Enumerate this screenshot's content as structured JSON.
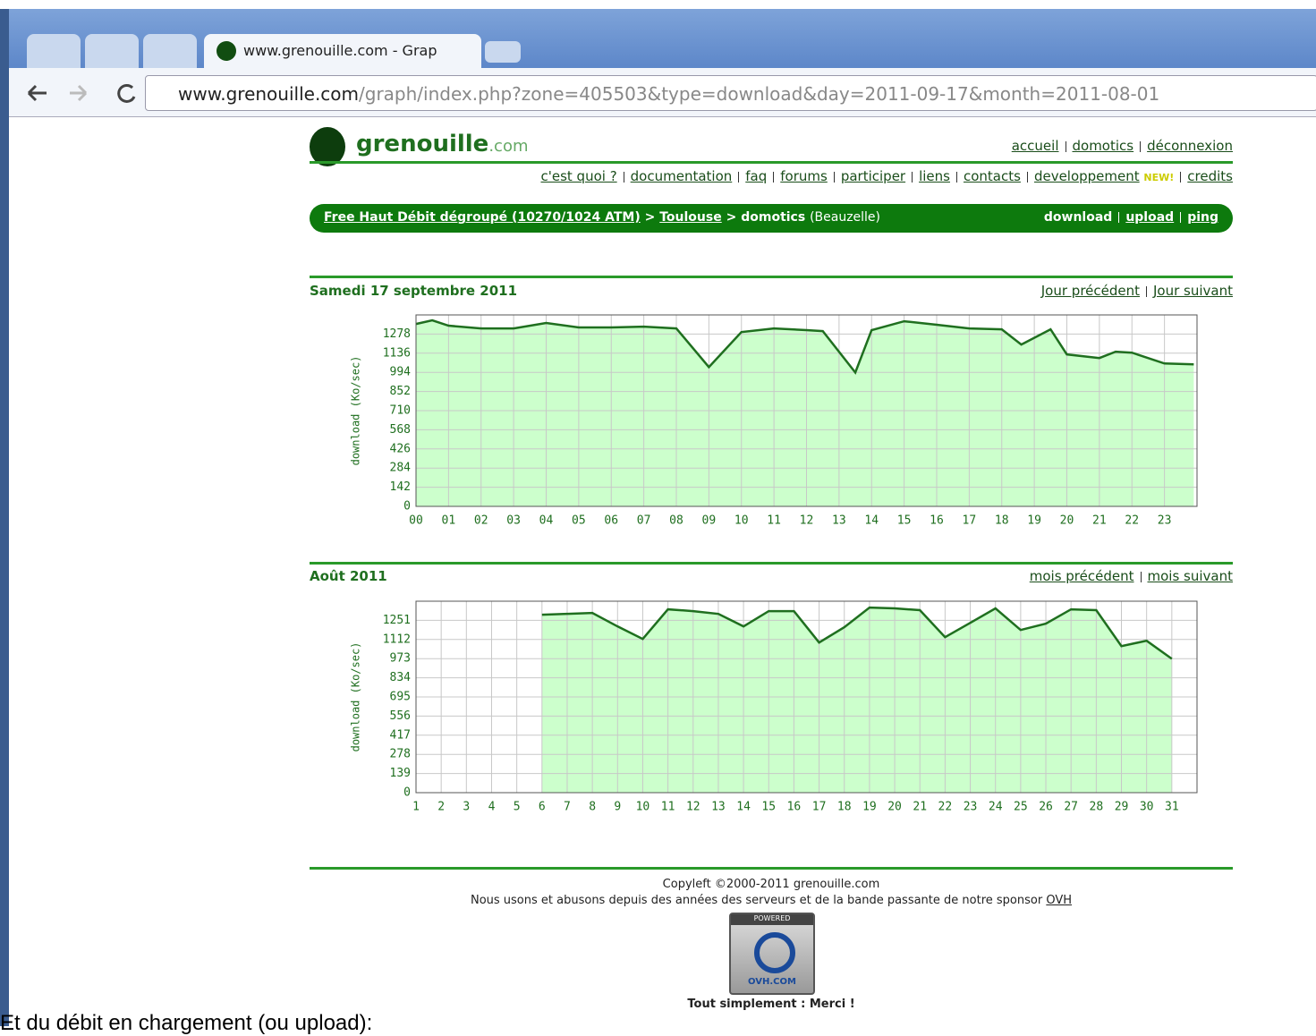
{
  "browser": {
    "tab_title": "www.grenouille.com - Grap",
    "url_host": "www.grenouille.com",
    "url_path": "/graph/index.php?zone=405503&type=download&day=2011-09-17&month=2011-08-01"
  },
  "header": {
    "logo": "grenouille",
    "logo_suffix": ".com",
    "top_links": [
      "accueil",
      "domotics",
      "déconnexion"
    ],
    "nav": [
      "c'est quoi ?",
      "documentation",
      "faq",
      "forums",
      "participer",
      "liens",
      "contacts",
      "developpement",
      "credits"
    ],
    "new_badge": "NEW!"
  },
  "breadcrumb": {
    "provider": "Free Haut Débit dégroupé (10270/1024 ATM)",
    "city": "Toulouse",
    "group": "domotics",
    "place": "(Beauzelle)",
    "sep": ">",
    "current": "download",
    "links": [
      "upload",
      "ping"
    ]
  },
  "day_section": {
    "title": "Samedi 17 septembre 2011",
    "links": [
      "Jour précédent",
      "Jour suivant"
    ]
  },
  "month_section": {
    "title": "Août 2011",
    "links": [
      "mois précédent",
      "mois suivant"
    ]
  },
  "chart_data": [
    {
      "type": "area",
      "y_label": "download (Ko/sec)",
      "x": [
        0,
        0.5,
        1,
        2,
        3,
        4,
        5,
        6,
        7,
        8,
        9,
        10,
        11,
        12,
        12.5,
        13.5,
        14,
        15,
        16,
        17,
        18,
        18.6,
        19.5,
        20,
        21,
        21.5,
        22,
        23,
        23.9
      ],
      "values": [
        1353,
        1380,
        1340,
        1320,
        1320,
        1360,
        1327,
        1327,
        1333,
        1320,
        1033,
        1293,
        1320,
        1307,
        1300,
        993,
        1307,
        1373,
        1347,
        1320,
        1313,
        1200,
        1313,
        1127,
        1100,
        1147,
        1140,
        1060,
        1053
      ],
      "color": "#1f6f1f",
      "fill": "#ccffcc",
      "xlim": [
        0,
        24
      ],
      "ylim": [
        0,
        1420
      ],
      "xticks": [
        {
          "value": 0,
          "label": "00"
        },
        {
          "value": 1,
          "label": "01"
        },
        {
          "value": 2,
          "label": "02"
        },
        {
          "value": 3,
          "label": "03"
        },
        {
          "value": 4,
          "label": "04"
        },
        {
          "value": 5,
          "label": "05"
        },
        {
          "value": 6,
          "label": "06"
        },
        {
          "value": 7,
          "label": "07"
        },
        {
          "value": 8,
          "label": "08"
        },
        {
          "value": 9,
          "label": "09"
        },
        10,
        11,
        12,
        13,
        14,
        15,
        16,
        17,
        18,
        19,
        20,
        21,
        22,
        23
      ],
      "yticks": [
        0,
        142,
        284,
        426,
        568,
        710,
        852,
        994,
        1136,
        1278
      ],
      "grid": true
    },
    {
      "type": "area",
      "y_label": "download (Ko/sec)",
      "x": [
        6,
        7,
        8,
        9,
        10,
        11,
        12,
        13,
        14,
        15,
        16,
        17,
        18,
        19,
        20,
        21,
        22,
        23,
        24,
        25,
        26,
        27,
        28,
        29,
        30,
        31
      ],
      "values": [
        1292,
        1298,
        1305,
        1207,
        1116,
        1331,
        1318,
        1298,
        1207,
        1318,
        1318,
        1090,
        1201,
        1344,
        1338,
        1325,
        1129,
        1233,
        1338,
        1181,
        1227,
        1331,
        1325,
        1064,
        1103,
        972
      ],
      "color": "#1f6f1f",
      "fill": "#ccffcc",
      "xlim": [
        1,
        32
      ],
      "ylim": [
        0,
        1390
      ],
      "xticks": [
        1,
        2,
        3,
        4,
        5,
        6,
        7,
        8,
        9,
        10,
        11,
        12,
        13,
        14,
        15,
        16,
        17,
        18,
        19,
        20,
        21,
        22,
        23,
        24,
        25,
        26,
        27,
        28,
        29,
        30,
        31
      ],
      "muted_xticks": [
        6,
        7,
        13,
        14,
        20,
        21,
        27,
        28
      ],
      "yticks": [
        0,
        139,
        278,
        417,
        556,
        695,
        834,
        973,
        1112,
        1251
      ],
      "grid": true
    }
  ],
  "footer": {
    "copyleft": "Copyleft ©2000-2011 grenouille.com",
    "sponsor_text": "Nous usons et abusons depuis des années des serveurs et de la bande passante de notre sponsor",
    "sponsor_link": "OVH",
    "badge_top": "POWERED",
    "badge_bottom": "OVH.COM",
    "thanks": "Tout simplement : Merci !"
  },
  "caption": "Et du débit en chargement (ou upload):"
}
